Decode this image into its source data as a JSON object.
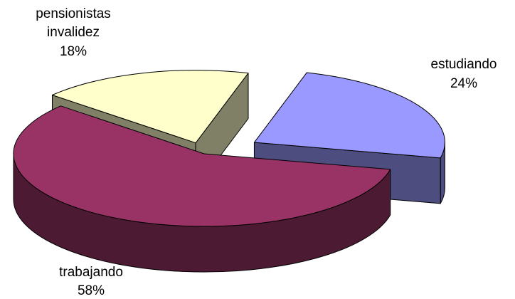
{
  "chart_data": {
    "type": "pie",
    "style": "3d-exploded",
    "slices": [
      {
        "label_lines": [
          "estudiando"
        ],
        "percent_label": "24%",
        "value": 24,
        "color": "#9999ff",
        "side_color": "#4d4d80"
      },
      {
        "label_lines": [
          "trabajando"
        ],
        "percent_label": "58%",
        "value": 58,
        "color": "#993366",
        "side_color": "#4d1a33"
      },
      {
        "label_lines": [
          "pensionistas",
          "invalidez"
        ],
        "percent_label": "18%",
        "value": 18,
        "color": "#ffffcc",
        "side_color": "#808066"
      }
    ]
  }
}
